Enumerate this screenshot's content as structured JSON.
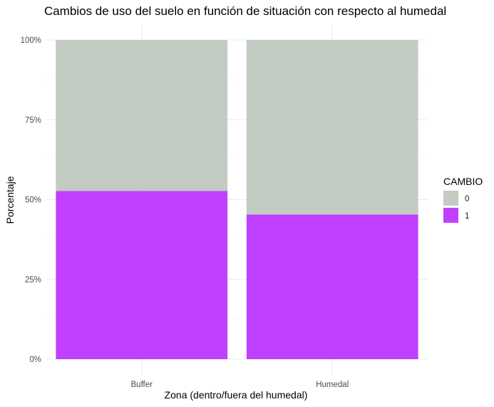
{
  "chart_data": {
    "type": "bar",
    "stacked": true,
    "percent": true,
    "title": "Cambios de uso del suelo en función de situación con respecto al humedal",
    "xlabel": "Zona (dentro/fuera del humedal)",
    "ylabel": "Porcentaje",
    "categories": [
      "Buffer",
      "Humedal"
    ],
    "ylim": [
      0,
      1
    ],
    "yticks": [
      {
        "value": 0,
        "label": "0%"
      },
      {
        "value": 0.25,
        "label": "25%"
      },
      {
        "value": 0.5,
        "label": "50%"
      },
      {
        "value": 0.75,
        "label": "75%"
      },
      {
        "value": 1,
        "label": "100%"
      }
    ],
    "series": [
      {
        "name": "1",
        "color": "#BF40FF",
        "values": [
          0.527,
          0.453
        ]
      },
      {
        "name": "0",
        "color": "#C2CCC2",
        "values": [
          0.473,
          0.547
        ]
      }
    ],
    "legend": {
      "title": "CAMBIO",
      "position": "right",
      "entries": [
        {
          "label": "0",
          "color": "#C2CCC2"
        },
        {
          "label": "1",
          "color": "#BF40FF"
        }
      ]
    },
    "grid": true
  }
}
